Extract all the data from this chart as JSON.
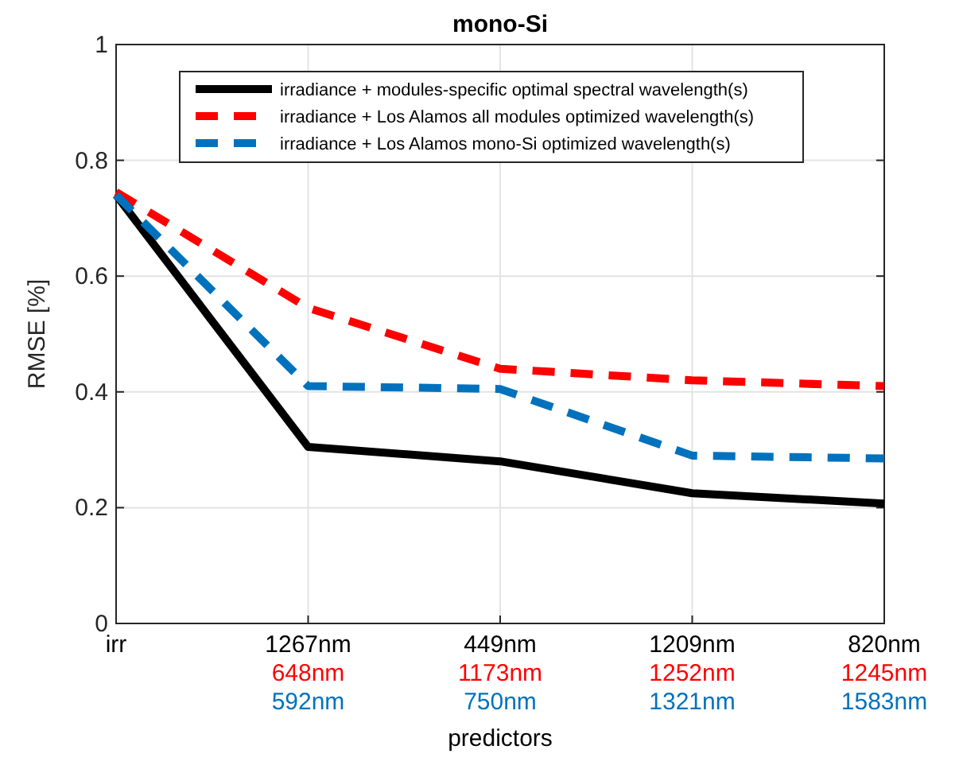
{
  "chart_data": {
    "type": "line",
    "title": "mono-Si",
    "xlabel": "predictors",
    "ylabel": "RMSE [%]",
    "categories": [
      "irr",
      "1267nm\n648nm\n592nm",
      "449nm\n1173nm\n750nm",
      "1209nm\n1252nm\n1321nm",
      "820nm\n1245nm\n1583nm"
    ],
    "series": [
      {
        "name": "irradiance + modules-specific optimal spectral wavelength(s)",
        "color": "#000000",
        "line_style": "solid",
        "values": [
          0.74,
          0.305,
          0.28,
          0.225,
          0.207
        ]
      },
      {
        "name": "irradiance + Los Alamos all modules optimized wavelength(s)",
        "color": "#ff0000",
        "line_style": "dashed",
        "values": [
          0.745,
          0.545,
          0.44,
          0.42,
          0.41
        ]
      },
      {
        "name": "irradiance + Los Alamos mono-Si optimized wavelength(s)",
        "color": "#0072bd",
        "line_style": "dashed",
        "values": [
          0.74,
          0.41,
          0.405,
          0.29,
          0.285
        ]
      }
    ],
    "ylim": [
      0,
      1
    ],
    "yticks": [
      0,
      {
        "value": 0.2,
        "label": "0.2"
      },
      {
        "value": 0.4,
        "label": "0.4"
      },
      {
        "value": 0.6,
        "label": "0.6"
      },
      {
        "value": 0.8,
        "label": "0.8"
      },
      1
    ],
    "grid": true,
    "legend": "top",
    "marker": "none"
  }
}
